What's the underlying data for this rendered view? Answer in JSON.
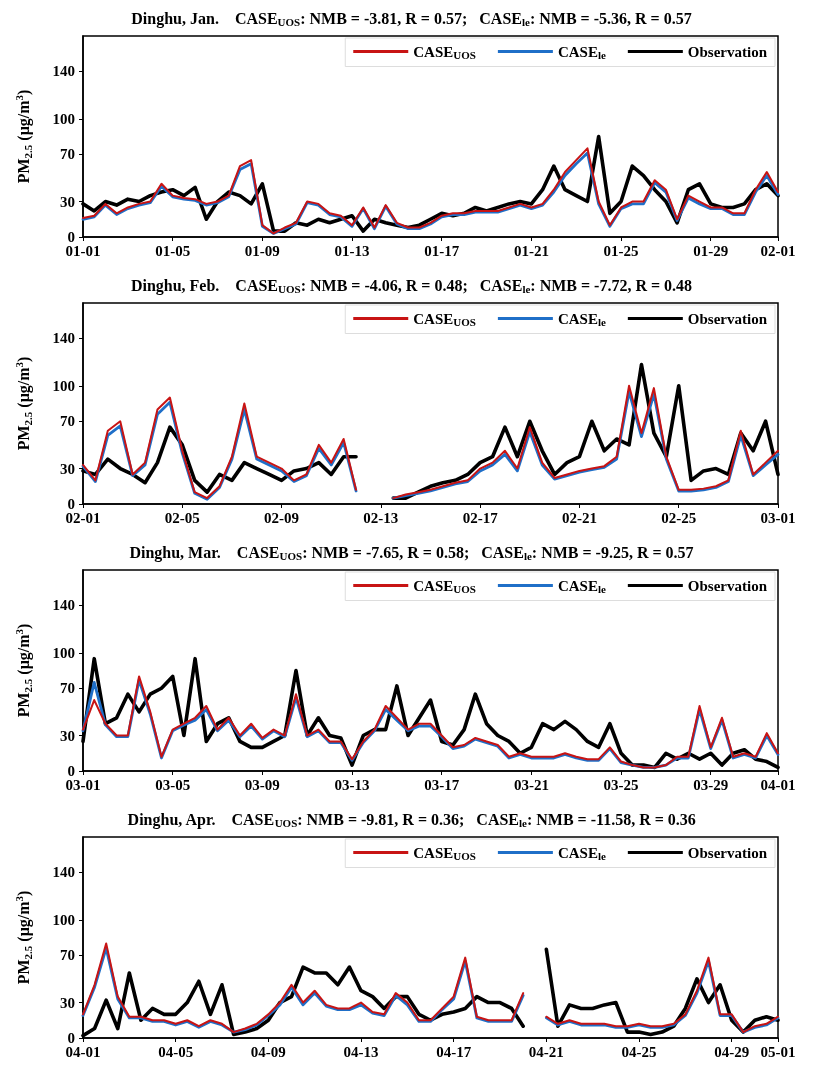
{
  "chart_data": [
    {
      "type": "line",
      "title": "Dinghu, Jan.    CASE$_{UOS}$: NMB = -3.81, R = 0.57;   CASE$_{le}$: NMB = -5.36, R = 0.57",
      "ylabel": "PM$_{2.5}$ (μg/m$^{3}$)",
      "x": [
        "--01-01",
        "--01-01T12:00",
        "--01-02",
        "--01-02T12:00",
        "--01-03",
        "--01-03T12:00",
        "--01-04",
        "--01-04T12:00",
        "--01-05",
        "--01-05T12:00",
        "--01-06",
        "--01-06T12:00",
        "--01-07",
        "--01-07T12:00",
        "--01-08",
        "--01-08T12:00",
        "--01-09",
        "--01-09T12:00",
        "--01-10",
        "--01-10T12:00",
        "--01-11",
        "--01-11T12:00",
        "--01-12",
        "--01-12T12:00",
        "--01-13",
        "--01-13T12:00",
        "--01-14",
        "--01-14T12:00",
        "--01-15",
        "--01-15T12:00",
        "--01-16",
        "--01-16T12:00",
        "--01-17",
        "--01-17T12:00",
        "--01-18",
        "--01-18T12:00",
        "--01-19",
        "--01-19T12:00",
        "--01-20",
        "--01-20T12:00",
        "--01-21",
        "--01-21T12:00",
        "--01-22",
        "--01-22T12:00",
        "--01-23",
        "--01-23T12:00",
        "--01-24",
        "--01-24T12:00",
        "--01-25",
        "--01-25T12:00",
        "--01-26",
        "--01-26T12:00",
        "--01-27",
        "--01-27T12:00",
        "--01-28",
        "--01-28T12:00",
        "--01-29",
        "--01-29T12:00",
        "--01-30",
        "--01-30T12:00",
        "--01-31",
        "--01-31T12:00",
        "--02-01"
      ],
      "series": [
        {
          "name": "CASE$_{UOS}$",
          "color": "#c81414",
          "values": [
            16,
            18,
            28,
            20,
            25,
            28,
            30,
            45,
            35,
            33,
            32,
            28,
            30,
            35,
            60,
            65,
            10,
            3,
            8,
            12,
            30,
            28,
            20,
            18,
            10,
            25,
            8,
            27,
            12,
            8,
            8,
            12,
            18,
            20,
            20,
            22,
            22,
            22,
            25,
            28,
            25,
            28,
            40,
            55,
            65,
            75,
            30,
            10,
            25,
            30,
            30,
            48,
            40,
            15,
            35,
            30,
            25,
            25,
            20,
            20,
            40,
            55,
            38
          ]
        },
        {
          "name": "CASE$_{le}$",
          "color": "#1f6fc8",
          "values": [
            15,
            17,
            27,
            19,
            24,
            27,
            29,
            43,
            34,
            32,
            31,
            27,
            29,
            34,
            57,
            62,
            9,
            3,
            7,
            11,
            29,
            27,
            19,
            17,
            9,
            24,
            7,
            26,
            11,
            7,
            7,
            11,
            17,
            19,
            19,
            21,
            21,
            21,
            24,
            27,
            24,
            27,
            38,
            52,
            62,
            71,
            28,
            9,
            24,
            28,
            28,
            46,
            38,
            14,
            33,
            28,
            24,
            24,
            19,
            19,
            38,
            52,
            36
          ]
        },
        {
          "name": "Observation",
          "color": "#000000",
          "values": [
            28,
            22,
            30,
            27,
            32,
            30,
            35,
            38,
            40,
            35,
            42,
            15,
            30,
            38,
            35,
            28,
            45,
            5,
            5,
            12,
            10,
            15,
            12,
            15,
            18,
            5,
            15,
            12,
            10,
            8,
            10,
            15,
            20,
            18,
            20,
            25,
            22,
            25,
            28,
            30,
            28,
            40,
            60,
            40,
            35,
            30,
            85,
            20,
            30,
            60,
            52,
            40,
            30,
            12,
            40,
            45,
            28,
            25,
            25,
            28,
            40,
            45,
            35
          ]
        }
      ],
      "xlim": [
        "--01-01",
        "--02-01"
      ],
      "xticks": [
        {
          "value": "--01-01",
          "label": "01-01"
        },
        {
          "value": "--01-05",
          "label": "01-05"
        },
        {
          "value": "--01-09",
          "label": "01-09"
        },
        {
          "value": "--01-13",
          "label": "01-13"
        },
        {
          "value": "--01-17",
          "label": "01-17"
        },
        {
          "value": "--01-21",
          "label": "01-21"
        },
        {
          "value": "--01-25",
          "label": "01-25"
        },
        {
          "value": "--01-29",
          "label": "01-29"
        },
        {
          "value": "--02-01",
          "label": "02-01"
        }
      ],
      "ylim": [
        0,
        170
      ],
      "yticks": [
        0,
        30,
        70,
        100,
        140
      ],
      "legend": "top right",
      "marker": "none"
    },
    {
      "type": "line",
      "title": "Dinghu, Feb.    CASE$_{UOS}$: NMB = -4.06, R = 0.48;   CASE$_{le}$: NMB = -7.72, R = 0.48",
      "ylabel": "PM$_{2.5}$ (μg/m$^{3}$)",
      "x": [
        "--02-01",
        "--02-01T12:00",
        "--02-02",
        "--02-02T12:00",
        "--02-03",
        "--02-03T12:00",
        "--02-04",
        "--02-04T12:00",
        "--02-05",
        "--02-05T12:00",
        "--02-06",
        "--02-06T12:00",
        "--02-07",
        "--02-07T12:00",
        "--02-08",
        "--02-08T12:00",
        "--02-09",
        "--02-09T12:00",
        "--02-10",
        "--02-10T12:00",
        "--02-11",
        "--02-11T12:00",
        "--02-12",
        "--02-12T12:00",
        "--02-13",
        "--02-13T12:00",
        "--02-14",
        "--02-14T12:00",
        "--02-15",
        "--02-15T12:00",
        "--02-16",
        "--02-16T12:00",
        "--02-17",
        "--02-17T12:00",
        "--02-18",
        "--02-18T12:00",
        "--02-19",
        "--02-19T12:00",
        "--02-20",
        "--02-20T12:00",
        "--02-21",
        "--02-21T12:00",
        "--02-22",
        "--02-22T12:00",
        "--02-23",
        "--02-23T12:00",
        "--02-24",
        "--02-24T12:00",
        "--02-25",
        "--02-25T12:00",
        "--02-26",
        "--02-26T12:00",
        "--02-27",
        "--02-27T12:00",
        "--02-28",
        "--02-28T12:00",
        "--03-01"
      ],
      "series": [
        {
          "name": "CASE$_{UOS}$",
          "color": "#c81414",
          "values": [
            33,
            20,
            62,
            70,
            25,
            35,
            80,
            90,
            45,
            10,
            5,
            15,
            40,
            85,
            40,
            35,
            30,
            20,
            25,
            50,
            35,
            55,
            12,
            null,
            null,
            5,
            8,
            10,
            12,
            15,
            18,
            20,
            30,
            35,
            45,
            30,
            65,
            35,
            22,
            25,
            28,
            30,
            32,
            40,
            100,
            60,
            98,
            40,
            12,
            12,
            13,
            15,
            20,
            62,
            25,
            35,
            45
          ]
        },
        {
          "name": "CASE$_{le}$",
          "color": "#1f6fc8",
          "values": [
            32,
            19,
            58,
            66,
            24,
            33,
            76,
            86,
            43,
            9,
            4,
            14,
            38,
            80,
            38,
            33,
            28,
            19,
            24,
            47,
            33,
            52,
            11,
            null,
            null,
            5,
            7,
            9,
            11,
            14,
            17,
            19,
            28,
            33,
            42,
            28,
            61,
            33,
            21,
            24,
            27,
            29,
            31,
            38,
            95,
            57,
            93,
            38,
            11,
            11,
            12,
            14,
            19,
            58,
            24,
            33,
            42
          ]
        },
        {
          "name": "Observation",
          "color": "#000000",
          "values": [
            28,
            25,
            38,
            30,
            25,
            18,
            35,
            65,
            50,
            20,
            10,
            25,
            20,
            35,
            30,
            25,
            20,
            28,
            30,
            35,
            25,
            40,
            40,
            null,
            null,
            5,
            5,
            10,
            15,
            18,
            20,
            25,
            35,
            40,
            65,
            40,
            70,
            45,
            25,
            35,
            40,
            70,
            45,
            55,
            50,
            118,
            60,
            40,
            100,
            20,
            28,
            30,
            25,
            60,
            45,
            70,
            25
          ]
        }
      ],
      "xlim": [
        "--02-01",
        "--03-01"
      ],
      "xticks": [
        {
          "value": "--02-01",
          "label": "02-01"
        },
        {
          "value": "--02-05",
          "label": "02-05"
        },
        {
          "value": "--02-09",
          "label": "02-09"
        },
        {
          "value": "--02-13",
          "label": "02-13"
        },
        {
          "value": "--02-17",
          "label": "02-17"
        },
        {
          "value": "--02-21",
          "label": "02-21"
        },
        {
          "value": "--02-25",
          "label": "02-25"
        },
        {
          "value": "--03-01",
          "label": "03-01"
        }
      ],
      "ylim": [
        0,
        170
      ],
      "yticks": [
        0,
        30,
        70,
        100,
        140
      ],
      "legend": "top right",
      "marker": "none"
    },
    {
      "type": "line",
      "title": "Dinghu, Mar.    CASE$_{UOS}$: NMB = -7.65, R = 0.58;   CASE$_{le}$: NMB = -9.25, R = 0.57",
      "ylabel": "PM$_{2.5}$ (μg/m$^{3}$)",
      "x": [
        "--03-01",
        "--03-01T12:00",
        "--03-02",
        "--03-02T12:00",
        "--03-03",
        "--03-03T12:00",
        "--03-04",
        "--03-04T12:00",
        "--03-05",
        "--03-05T12:00",
        "--03-06",
        "--03-06T12:00",
        "--03-07",
        "--03-07T12:00",
        "--03-08",
        "--03-08T12:00",
        "--03-09",
        "--03-09T12:00",
        "--03-10",
        "--03-10T12:00",
        "--03-11",
        "--03-11T12:00",
        "--03-12",
        "--03-12T12:00",
        "--03-13",
        "--03-13T12:00",
        "--03-14",
        "--03-14T12:00",
        "--03-15",
        "--03-15T12:00",
        "--03-16",
        "--03-16T12:00",
        "--03-17",
        "--03-17T12:00",
        "--03-18",
        "--03-18T12:00",
        "--03-19",
        "--03-19T12:00",
        "--03-20",
        "--03-20T12:00",
        "--03-21",
        "--03-21T12:00",
        "--03-22",
        "--03-22T12:00",
        "--03-23",
        "--03-23T12:00",
        "--03-24",
        "--03-24T12:00",
        "--03-25",
        "--03-25T12:00",
        "--03-26",
        "--03-26T12:00",
        "--03-27",
        "--03-27T12:00",
        "--03-28",
        "--03-28T12:00",
        "--03-29",
        "--03-29T12:00",
        "--03-30",
        "--03-30T12:00",
        "--03-31",
        "--03-31T12:00",
        "--04-01"
      ],
      "series": [
        {
          "name": "CASE$_{UOS}$",
          "color": "#c81414",
          "values": [
            35,
            60,
            40,
            30,
            30,
            80,
            50,
            12,
            35,
            40,
            45,
            55,
            35,
            45,
            30,
            40,
            28,
            35,
            30,
            65,
            30,
            35,
            25,
            25,
            10,
            25,
            35,
            55,
            45,
            35,
            40,
            40,
            30,
            20,
            22,
            28,
            25,
            22,
            12,
            15,
            12,
            12,
            12,
            15,
            12,
            10,
            10,
            20,
            8,
            5,
            3,
            3,
            5,
            12,
            12,
            55,
            20,
            45,
            12,
            15,
            12,
            32,
            15
          ]
        },
        {
          "name": "CASE$_{le}$",
          "color": "#1f6fc8",
          "values": [
            34,
            75,
            39,
            29,
            29,
            77,
            48,
            11,
            34,
            39,
            43,
            52,
            34,
            43,
            29,
            38,
            27,
            34,
            29,
            62,
            29,
            34,
            24,
            24,
            9,
            24,
            34,
            52,
            43,
            34,
            38,
            38,
            29,
            19,
            21,
            27,
            24,
            21,
            11,
            14,
            11,
            11,
            11,
            14,
            11,
            9,
            9,
            19,
            7,
            5,
            3,
            3,
            5,
            11,
            11,
            52,
            19,
            43,
            11,
            14,
            11,
            30,
            14
          ]
        },
        {
          "name": "Observation",
          "color": "#000000",
          "values": [
            25,
            95,
            40,
            45,
            65,
            50,
            65,
            70,
            80,
            30,
            95,
            25,
            40,
            45,
            25,
            20,
            20,
            25,
            30,
            85,
            30,
            45,
            30,
            28,
            5,
            30,
            35,
            35,
            72,
            30,
            45,
            60,
            25,
            22,
            35,
            65,
            40,
            30,
            25,
            15,
            20,
            40,
            35,
            42,
            35,
            25,
            20,
            40,
            15,
            5,
            5,
            3,
            15,
            10,
            15,
            10,
            15,
            5,
            15,
            18,
            10,
            8,
            3
          ]
        }
      ],
      "xlim": [
        "--03-01",
        "--04-01"
      ],
      "xticks": [
        {
          "value": "--03-01",
          "label": "03-01"
        },
        {
          "value": "--03-05",
          "label": "03-05"
        },
        {
          "value": "--03-09",
          "label": "03-09"
        },
        {
          "value": "--03-13",
          "label": "03-13"
        },
        {
          "value": "--03-17",
          "label": "03-17"
        },
        {
          "value": "--03-21",
          "label": "03-21"
        },
        {
          "value": "--03-25",
          "label": "03-25"
        },
        {
          "value": "--03-29",
          "label": "03-29"
        },
        {
          "value": "--04-01",
          "label": "04-01"
        }
      ],
      "ylim": [
        0,
        170
      ],
      "yticks": [
        0,
        30,
        70,
        100,
        140
      ],
      "legend": "top right",
      "marker": "none"
    },
    {
      "type": "line",
      "title": "Dinghu, Apr.    CASE$_{UOS}$: NMB = -9.81, R = 0.36;   CASE$_{le}$: NMB = -11.58, R = 0.36",
      "ylabel": "PM$_{2.5}$ (μg/m$^{3}$)",
      "x": [
        "--04-01",
        "--04-01T12:00",
        "--04-02",
        "--04-02T12:00",
        "--04-03",
        "--04-03T12:00",
        "--04-04",
        "--04-04T12:00",
        "--04-05",
        "--04-05T12:00",
        "--04-06",
        "--04-06T12:00",
        "--04-07",
        "--04-07T12:00",
        "--04-08",
        "--04-08T12:00",
        "--04-09",
        "--04-09T12:00",
        "--04-10",
        "--04-10T12:00",
        "--04-11",
        "--04-11T12:00",
        "--04-12",
        "--04-12T12:00",
        "--04-13",
        "--04-13T12:00",
        "--04-14",
        "--04-14T12:00",
        "--04-15",
        "--04-15T12:00",
        "--04-16",
        "--04-16T12:00",
        "--04-17",
        "--04-17T12:00",
        "--04-18",
        "--04-18T12:00",
        "--04-19",
        "--04-19T12:00",
        "--04-20",
        "--04-20T12:00",
        "--04-21",
        "--04-21T12:00",
        "--04-22",
        "--04-22T12:00",
        "--04-23",
        "--04-23T12:00",
        "--04-24",
        "--04-24T12:00",
        "--04-25",
        "--04-25T12:00",
        "--04-26",
        "--04-26T12:00",
        "--04-27",
        "--04-27T12:00",
        "--04-28",
        "--04-28T12:00",
        "--04-29",
        "--04-29T12:00",
        "--04-30",
        "--04-30T12:00",
        "--05-01"
      ],
      "series": [
        {
          "name": "CASE$_{UOS}$",
          "color": "#c81414",
          "values": [
            20,
            45,
            80,
            35,
            18,
            18,
            15,
            15,
            12,
            15,
            10,
            15,
            12,
            5,
            8,
            12,
            20,
            30,
            45,
            30,
            40,
            28,
            25,
            25,
            30,
            22,
            20,
            38,
            30,
            15,
            15,
            25,
            35,
            68,
            18,
            15,
            15,
            15,
            38,
            null,
            18,
            12,
            15,
            12,
            12,
            12,
            10,
            10,
            12,
            10,
            10,
            12,
            20,
            40,
            68,
            20,
            20,
            5,
            10,
            12,
            18
          ]
        },
        {
          "name": "CASE$_{le}$",
          "color": "#1f6fc8",
          "values": [
            19,
            43,
            76,
            33,
            17,
            17,
            14,
            14,
            11,
            14,
            9,
            14,
            11,
            5,
            7,
            11,
            19,
            28,
            43,
            28,
            38,
            27,
            24,
            24,
            28,
            21,
            19,
            36,
            28,
            14,
            14,
            24,
            33,
            65,
            17,
            14,
            14,
            14,
            36,
            null,
            17,
            11,
            14,
            11,
            11,
            11,
            9,
            9,
            11,
            9,
            9,
            11,
            19,
            38,
            65,
            19,
            19,
            5,
            9,
            11,
            17
          ]
        },
        {
          "name": "Observation",
          "color": "#000000",
          "values": [
            2,
            8,
            32,
            8,
            55,
            15,
            25,
            20,
            20,
            30,
            48,
            20,
            45,
            3,
            5,
            8,
            15,
            30,
            35,
            60,
            55,
            55,
            45,
            60,
            40,
            35,
            25,
            35,
            35,
            20,
            15,
            20,
            22,
            25,
            35,
            30,
            30,
            25,
            10,
            null,
            75,
            10,
            28,
            25,
            25,
            28,
            30,
            5,
            5,
            3,
            5,
            10,
            25,
            50,
            30,
            45,
            15,
            5,
            15,
            18,
            15
          ]
        }
      ],
      "xlim": [
        "--04-01",
        "--05-01"
      ],
      "xticks": [
        {
          "value": "--04-01",
          "label": "04-01"
        },
        {
          "value": "--04-05",
          "label": "04-05"
        },
        {
          "value": "--04-09",
          "label": "04-09"
        },
        {
          "value": "--04-13",
          "label": "04-13"
        },
        {
          "value": "--04-17",
          "label": "04-17"
        },
        {
          "value": "--04-21",
          "label": "04-21"
        },
        {
          "value": "--04-25",
          "label": "04-25"
        },
        {
          "value": "--04-29",
          "label": "04-29"
        },
        {
          "value": "--05-01",
          "label": "05-01"
        }
      ],
      "ylim": [
        0,
        170
      ],
      "yticks": [
        0,
        30,
        70,
        100,
        140
      ],
      "legend": "top right",
      "marker": "none"
    }
  ]
}
